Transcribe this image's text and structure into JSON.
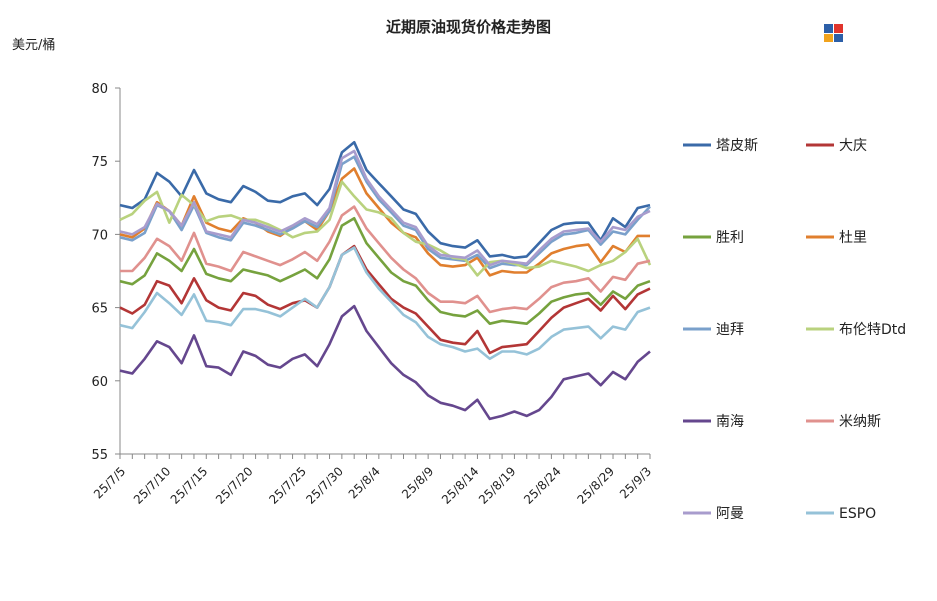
{
  "chart_data": {
    "type": "line",
    "title": "近期原油现货价格走势图",
    "ylabel": "美元/桶",
    "ylim": [
      55,
      80
    ],
    "yticks": [
      55,
      60,
      65,
      70,
      75,
      80
    ],
    "xtick_labels": [
      "25/7/5",
      "25/7/10",
      "25/7/15",
      "25/7/20",
      "25/7/25",
      "25/7/30",
      "25/8/4",
      "25/8/9",
      "25/8/14",
      "25/8/19",
      "25/8/24",
      "25/8/29",
      "25/9/3"
    ],
    "x": [
      "7/4",
      "7/7",
      "7/8",
      "7/9",
      "7/10",
      "7/11",
      "7/14",
      "7/15",
      "7/16",
      "7/17",
      "7/18",
      "7/21",
      "7/22",
      "7/23",
      "7/24",
      "7/25",
      "7/28",
      "7/29",
      "7/30",
      "7/31",
      "8/1",
      "8/4",
      "8/5",
      "8/6",
      "8/7",
      "8/8",
      "8/11",
      "8/12",
      "8/13",
      "8/14",
      "8/15",
      "8/18",
      "8/19",
      "8/20",
      "8/21",
      "8/22",
      "8/25",
      "8/26",
      "8/27",
      "8/28",
      "8/29",
      "9/1",
      "9/2",
      "9/3"
    ],
    "series": [
      {
        "name": "塔皮斯",
        "color": "#3a6aa8",
        "values": [
          72.0,
          71.8,
          72.4,
          74.2,
          73.6,
          72.6,
          74.4,
          72.8,
          72.4,
          72.2,
          73.3,
          72.9,
          72.3,
          72.2,
          72.6,
          72.8,
          72.0,
          73.1,
          75.6,
          76.3,
          74.4,
          73.5,
          72.6,
          71.7,
          71.4,
          70.2,
          69.4,
          69.2,
          69.1,
          69.6,
          68.5,
          68.6,
          68.4,
          68.5,
          69.4,
          70.3,
          70.7,
          70.8,
          70.8,
          69.6,
          71.1,
          70.5,
          71.8,
          72.0
        ]
      },
      {
        "name": "大庆",
        "color": "#b33636",
        "values": [
          65.0,
          64.6,
          65.2,
          66.8,
          66.5,
          65.3,
          67.0,
          65.5,
          65.0,
          64.8,
          66.0,
          65.8,
          65.2,
          64.9,
          65.3,
          65.5,
          65.0,
          66.4,
          68.6,
          69.2,
          67.6,
          66.6,
          65.6,
          65.0,
          64.6,
          63.7,
          62.8,
          62.6,
          62.5,
          63.4,
          61.9,
          62.3,
          62.4,
          62.5,
          63.4,
          64.3,
          65.0,
          65.3,
          65.6,
          64.8,
          65.8,
          64.9,
          65.9,
          66.3
        ]
      },
      {
        "name": "胜利",
        "color": "#76a23e",
        "values": [
          66.8,
          66.6,
          67.2,
          68.7,
          68.2,
          67.5,
          69.0,
          67.3,
          67.0,
          66.8,
          67.6,
          67.4,
          67.2,
          66.8,
          67.2,
          67.6,
          67.0,
          68.3,
          70.6,
          71.1,
          69.4,
          68.4,
          67.4,
          66.8,
          66.5,
          65.5,
          64.7,
          64.5,
          64.4,
          64.8,
          63.9,
          64.1,
          64.0,
          63.9,
          64.6,
          65.4,
          65.7,
          65.9,
          66.0,
          65.2,
          66.1,
          65.6,
          66.5,
          66.8
        ]
      },
      {
        "name": "杜里",
        "color": "#e07f2e",
        "values": [
          70.0,
          69.8,
          70.4,
          72.2,
          71.6,
          70.6,
          72.6,
          70.8,
          70.4,
          70.2,
          71.1,
          70.8,
          70.2,
          69.9,
          70.5,
          70.9,
          70.3,
          71.6,
          73.8,
          74.5,
          72.8,
          71.8,
          70.8,
          70.1,
          69.8,
          68.7,
          67.9,
          67.8,
          67.9,
          68.4,
          67.2,
          67.5,
          67.4,
          67.4,
          68.0,
          68.7,
          69.0,
          69.2,
          69.3,
          68.1,
          69.2,
          68.8,
          69.9,
          69.9
        ]
      },
      {
        "name": "迪拜",
        "color": "#7aa0cb",
        "values": [
          69.8,
          69.6,
          70.1,
          72.0,
          71.6,
          70.3,
          72.0,
          70.1,
          69.8,
          69.6,
          70.8,
          70.6,
          70.3,
          70.0,
          70.4,
          70.9,
          70.5,
          71.6,
          74.8,
          75.3,
          73.6,
          72.4,
          71.5,
          70.6,
          70.3,
          69.0,
          68.4,
          68.3,
          68.2,
          68.6,
          67.7,
          68.0,
          67.9,
          67.9,
          68.7,
          69.5,
          70.0,
          70.1,
          70.3,
          69.3,
          70.2,
          70.0,
          71.0,
          71.9
        ]
      },
      {
        "name": "布伦特Dtd",
        "color": "#b9d27e",
        "values": [
          71.0,
          71.4,
          72.3,
          72.9,
          70.8,
          72.7,
          72.0,
          70.9,
          71.2,
          71.3,
          71.0,
          71.0,
          70.7,
          70.3,
          69.8,
          70.1,
          70.2,
          71.0,
          73.6,
          72.6,
          71.7,
          71.5,
          71.1,
          70.1,
          69.5,
          69.3,
          68.9,
          68.4,
          68.3,
          67.2,
          68.1,
          68.2,
          68.0,
          67.7,
          67.8,
          68.2,
          68.0,
          67.8,
          67.5,
          67.9,
          68.2,
          68.8,
          69.7,
          67.9
        ]
      },
      {
        "name": "南海",
        "color": "#65478e",
        "values": [
          60.7,
          60.5,
          61.5,
          62.7,
          62.3,
          61.2,
          63.1,
          61.0,
          60.9,
          60.4,
          62.0,
          61.7,
          61.1,
          60.9,
          61.5,
          61.8,
          61.0,
          62.5,
          64.4,
          65.1,
          63.4,
          62.3,
          61.2,
          60.4,
          59.9,
          59.0,
          58.5,
          58.3,
          58.0,
          58.7,
          57.4,
          57.6,
          57.9,
          57.6,
          58.0,
          58.9,
          60.1,
          60.3,
          60.5,
          59.7,
          60.6,
          60.1,
          61.3,
          62.0
        ]
      },
      {
        "name": "米纳斯",
        "color": "#e0918e",
        "values": [
          67.5,
          67.5,
          68.4,
          69.7,
          69.2,
          68.2,
          70.1,
          68.0,
          67.8,
          67.5,
          68.8,
          68.5,
          68.2,
          67.9,
          68.3,
          68.8,
          68.2,
          69.5,
          71.3,
          71.9,
          70.4,
          69.4,
          68.4,
          67.6,
          67.0,
          66.0,
          65.4,
          65.4,
          65.3,
          65.8,
          64.7,
          64.9,
          65.0,
          64.9,
          65.6,
          66.4,
          66.7,
          66.8,
          67.0,
          66.1,
          67.1,
          66.9,
          68.0,
          68.2
        ]
      },
      {
        "name": "阿曼",
        "color": "#a89ccd",
        "values": [
          70.2,
          70.0,
          70.5,
          72.1,
          71.6,
          70.6,
          72.2,
          70.2,
          70.0,
          69.8,
          71.0,
          70.8,
          70.5,
          70.2,
          70.6,
          71.1,
          70.7,
          71.8,
          75.2,
          75.7,
          73.8,
          72.6,
          71.7,
          70.8,
          70.5,
          69.2,
          68.6,
          68.5,
          68.4,
          68.9,
          67.9,
          68.2,
          68.1,
          68.0,
          68.9,
          69.7,
          70.2,
          70.3,
          70.4,
          69.5,
          70.5,
          70.3,
          71.2,
          71.6
        ]
      },
      {
        "name": "ESPO",
        "color": "#95c2d8",
        "values": [
          63.8,
          63.6,
          64.7,
          66.0,
          65.3,
          64.5,
          65.9,
          64.1,
          64.0,
          63.8,
          64.9,
          64.9,
          64.7,
          64.4,
          65.0,
          65.6,
          65.0,
          66.4,
          68.6,
          69.1,
          67.4,
          66.3,
          65.4,
          64.5,
          64.0,
          63.0,
          62.5,
          62.3,
          62.0,
          62.2,
          61.5,
          62.0,
          62.0,
          61.8,
          62.2,
          63.0,
          63.5,
          63.6,
          63.7,
          62.9,
          63.7,
          63.5,
          64.7,
          65.0
        ]
      }
    ]
  }
}
